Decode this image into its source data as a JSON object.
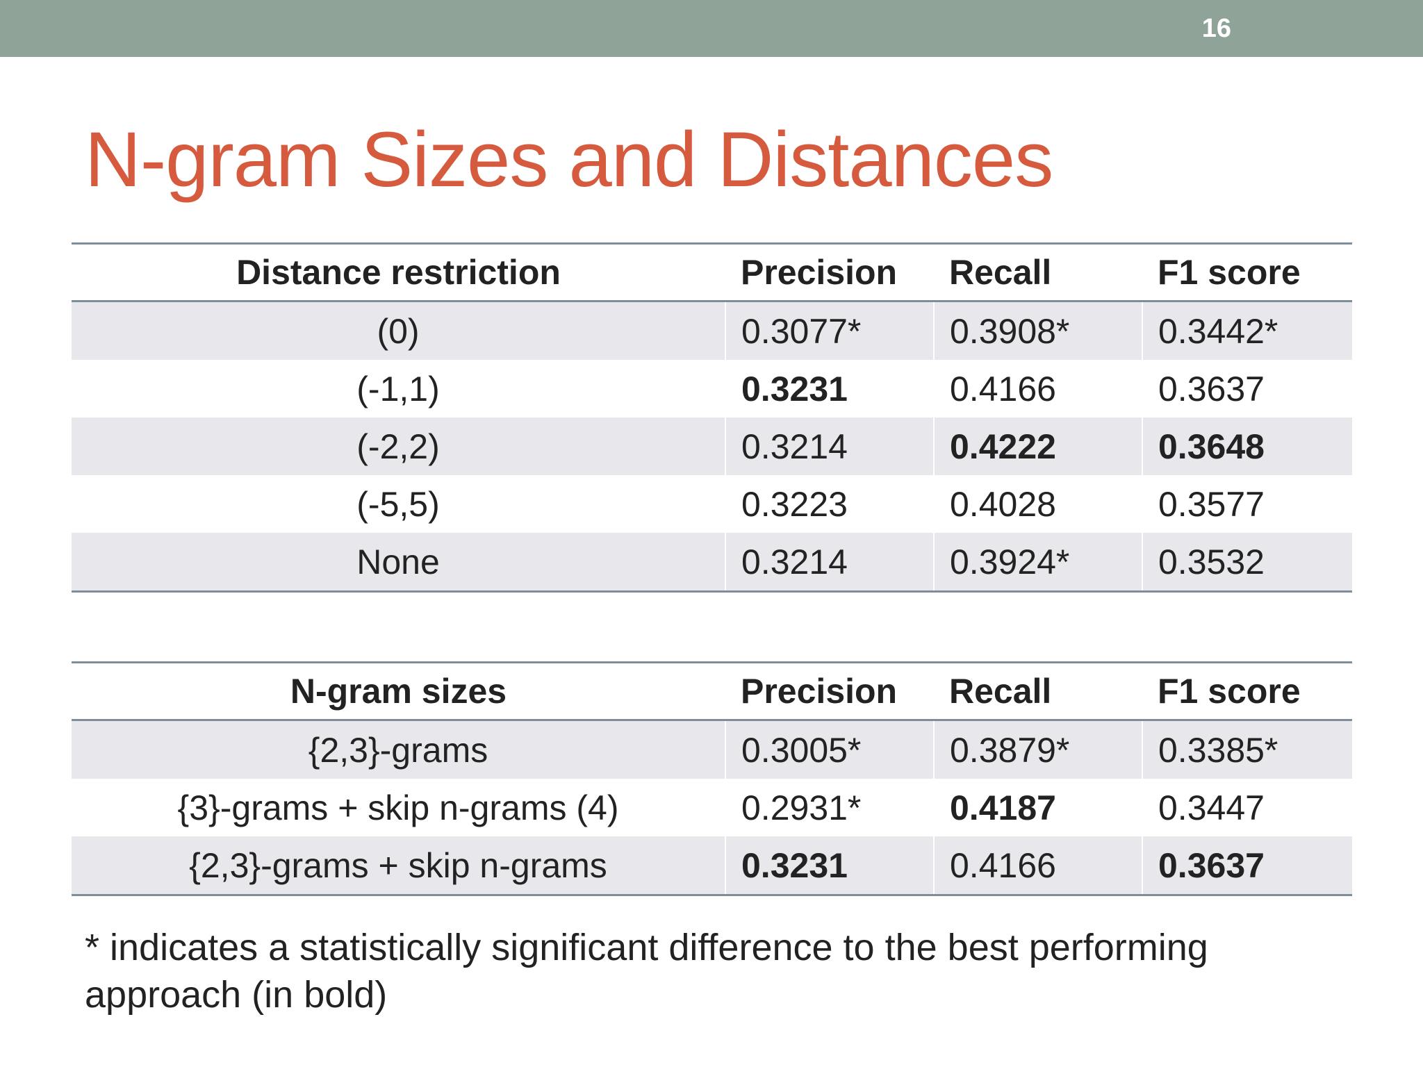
{
  "slide": {
    "number": "16",
    "title": "N-gram Sizes and Distances",
    "footnote": "* indicates a statistically significant difference to the best performing approach (in bold)"
  },
  "colors": {
    "header_bar": "#8fa398",
    "title": "#d55a3e",
    "row_shade": "#e7e7ec",
    "rule": "#7f8d99"
  },
  "table1": {
    "headers": [
      "Distance restriction",
      "Precision",
      "Recall",
      "F1 score"
    ],
    "rows": [
      {
        "label": "(0)",
        "precision": "0.3077*",
        "recall": "0.3908*",
        "f1": "0.3442*",
        "bold": []
      },
      {
        "label": "(-1,1)",
        "precision": "0.3231",
        "recall": "0.4166",
        "f1": "0.3637",
        "bold": [
          "precision"
        ]
      },
      {
        "label": "(-2,2)",
        "precision": "0.3214",
        "recall": "0.4222",
        "f1": "0.3648",
        "bold": [
          "recall",
          "f1"
        ]
      },
      {
        "label": "(-5,5)",
        "precision": "0.3223",
        "recall": "0.4028",
        "f1": "0.3577",
        "bold": []
      },
      {
        "label": "None",
        "precision": "0.3214",
        "recall": "0.3924*",
        "f1": "0.3532",
        "bold": []
      }
    ]
  },
  "table2": {
    "headers": [
      "N-gram sizes",
      "Precision",
      "Recall",
      "F1 score"
    ],
    "rows": [
      {
        "label": "{2,3}-grams",
        "precision": "0.3005*",
        "recall": "0.3879*",
        "f1": "0.3385*",
        "bold": []
      },
      {
        "label": "{3}-grams + skip n-grams (4)",
        "precision": "0.2931*",
        "recall": "0.4187",
        "f1": "0.3447",
        "bold": [
          "recall"
        ]
      },
      {
        "label": "{2,3}-grams + skip n-grams",
        "precision": "0.3231",
        "recall": "0.4166",
        "f1": "0.3637",
        "bold": [
          "precision",
          "f1"
        ]
      }
    ]
  }
}
